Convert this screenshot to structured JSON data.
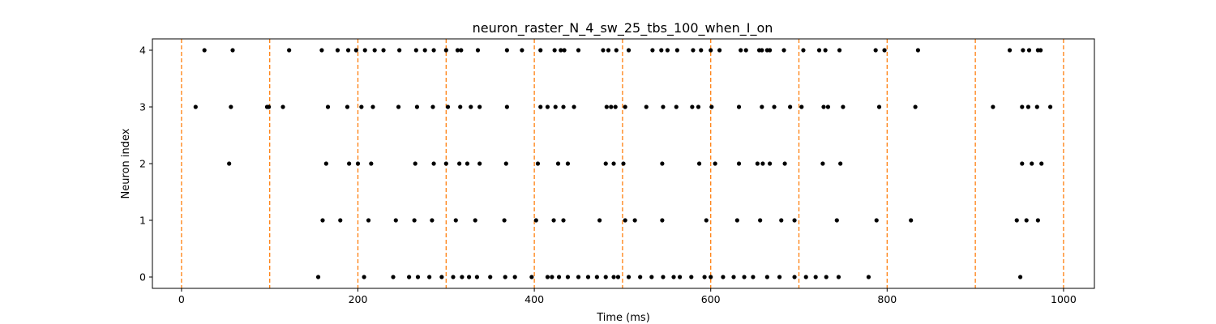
{
  "chart_data": {
    "type": "scatter",
    "title": "neuron_raster_N_4_sw_25_tbs_100_when_I_on",
    "xlabel": "Time (ms)",
    "ylabel": "Neuron index",
    "xlim": [
      -33,
      1035
    ],
    "ylim": [
      -0.2,
      4.2
    ],
    "xticks": [
      0,
      200,
      400,
      600,
      800,
      1000
    ],
    "yticks": [
      0,
      1,
      2,
      3,
      4
    ],
    "xtick_labels": [
      "0",
      "200",
      "400",
      "600",
      "800",
      "1000"
    ],
    "ytick_labels": [
      "0",
      "1",
      "2",
      "3",
      "4"
    ],
    "grid": false,
    "marker_color": "#000000",
    "vline_color": "#ff7f0e",
    "vlines": [
      0,
      100,
      200,
      300,
      400,
      500,
      600,
      700,
      800,
      900,
      1000
    ],
    "series": [
      {
        "neuron": 0,
        "spikes": [
          155,
          207,
          240,
          258,
          268,
          281,
          295,
          308,
          318,
          326,
          335,
          350,
          367,
          378,
          397,
          415,
          420,
          428,
          438,
          450,
          461,
          471,
          481,
          490,
          495,
          507,
          520,
          533,
          546,
          558,
          565,
          578,
          593,
          600,
          614,
          626,
          638,
          648,
          664,
          678,
          695,
          708,
          719,
          731,
          745,
          779,
          951
        ]
      },
      {
        "neuron": 1,
        "spikes": [
          160,
          180,
          212,
          243,
          264,
          284,
          311,
          333,
          366,
          402,
          422,
          433,
          474,
          503,
          514,
          545,
          595,
          630,
          656,
          680,
          695,
          743,
          788,
          827,
          947,
          958,
          971
        ]
      },
      {
        "neuron": 2,
        "spikes": [
          54,
          164,
          190,
          200,
          215,
          265,
          286,
          300,
          315,
          324,
          338,
          368,
          404,
          427,
          438,
          481,
          490,
          501,
          545,
          587,
          605,
          632,
          653,
          659,
          667,
          684,
          727,
          747,
          953,
          964,
          975
        ]
      },
      {
        "neuron": 3,
        "spikes": [
          16,
          56,
          97,
          99,
          115,
          166,
          188,
          204,
          217,
          246,
          267,
          285,
          302,
          316,
          328,
          338,
          369,
          407,
          415,
          424,
          433,
          445,
          482,
          487,
          492,
          503,
          527,
          546,
          561,
          579,
          586,
          601,
          632,
          658,
          672,
          690,
          703,
          728,
          733,
          750,
          791,
          832,
          920,
          953,
          960,
          970,
          985
        ]
      },
      {
        "neuron": 4,
        "spikes": [
          26,
          58,
          122,
          159,
          177,
          189,
          198,
          208,
          219,
          229,
          247,
          266,
          276,
          286,
          300,
          313,
          317,
          336,
          369,
          386,
          407,
          423,
          430,
          434,
          450,
          478,
          484,
          493,
          507,
          534,
          544,
          551,
          562,
          580,
          589,
          600,
          610,
          634,
          640,
          655,
          658,
          664,
          667,
          683,
          705,
          723,
          730,
          746,
          787,
          797,
          835,
          939,
          954,
          961,
          971,
          974
        ]
      }
    ]
  }
}
